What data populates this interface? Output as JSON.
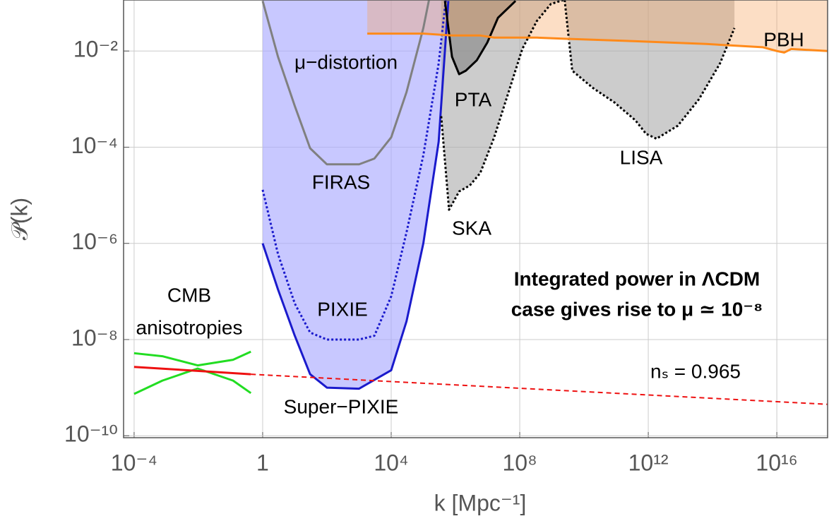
{
  "chart_data": {
    "type": "line",
    "x_label": "k [Mpc⁻¹]",
    "y_label": "𝒫(k)",
    "log_x": true,
    "log_y": true,
    "grid": true,
    "xlim": [
      4.7e-05,
      3.8e+17
    ],
    "ylim": [
      9.1e-11,
      0.115
    ],
    "xticks": [
      {
        "value": 0.0001,
        "label": "10⁻⁴"
      },
      1,
      {
        "value": 10000.0,
        "label": "10⁴"
      },
      {
        "value": 100000000.0,
        "label": "10⁸"
      },
      {
        "value": 1000000000000.0,
        "label": "10¹²"
      },
      {
        "value": 1e+16,
        "label": "10¹⁶"
      }
    ],
    "yticks": [
      {
        "value": 1e-10,
        "label": "10⁻¹⁰"
      },
      {
        "value": 1e-08,
        "label": "10⁻⁸"
      },
      {
        "value": 1e-06,
        "label": "10⁻⁶"
      },
      {
        "value": 0.0001,
        "label": "10⁻⁴"
      },
      {
        "value": 0.01,
        "label": "10⁻²"
      }
    ],
    "series": [
      {
        "color": "#1a1acc",
        "style": "solid",
        "fill": "rgba(170,170,255,0.65)",
        "x": [
          1,
          3,
          10,
          30,
          100,
          1000,
          10000,
          30000,
          100000,
          300000,
          600000
        ],
        "y": [
          1e-06,
          1.1e-07,
          1.2e-08,
          1.9e-09,
          1e-09,
          9.5e-10,
          2.3e-09,
          2.4e-08,
          1e-06,
          0.00013,
          0.11
        ]
      },
      {
        "color": "#1a1acc",
        "style": "dotted",
        "x": [
          1,
          3,
          10,
          30,
          100,
          1000,
          3000,
          10000,
          30000,
          100000,
          300000,
          500000
        ],
        "y": [
          1.3e-05,
          6e-07,
          5.6e-08,
          1.4e-08,
          1e-08,
          1e-08,
          1.2e-08,
          7.9e-08,
          1.7e-06,
          6.8e-05,
          0.0055,
          0.115
        ]
      },
      {
        "color": "#808080",
        "style": "solid",
        "x": [
          1,
          3,
          10,
          30,
          100,
          1000,
          3000,
          10000,
          30000,
          100000,
          150000
        ],
        "y": [
          0.11,
          0.0076,
          0.00072,
          9.5e-05,
          4.4e-05,
          4.4e-05,
          5.8e-05,
          0.00016,
          0.0014,
          0.03,
          0.115
        ]
      },
      {
        "color": "#000000",
        "style": "solid",
        "fill": "rgba(110,110,110,0.75)",
        "x": [
          470000,
          780000,
          1300000,
          2100000,
          4600000,
          9800000,
          21000000,
          74000000
        ],
        "y": [
          0.11,
          0.0076,
          0.0033,
          0.0039,
          0.0064,
          0.015,
          0.049,
          0.11
        ]
      },
      {
        "color": "#000000",
        "style": "dotted",
        "fill": "rgba(170,170,170,0.6)",
        "x": [
          360000,
          630000,
          1300000,
          2800000,
          5900000,
          16000000,
          45000000,
          120000000,
          340000000,
          930000000,
          2300000000
        ],
        "y": [
          0.00044,
          5e-06,
          1.2e-05,
          1.6e-05,
          2.9e-05,
          0.00016,
          0.0014,
          0.011,
          0.042,
          0.095,
          0.115
        ]
      },
      {
        "color": "#000000",
        "style": "dotted",
        "fill": "rgba(170,170,170,0.6)",
        "x": [
          2500000000,
          4300000000,
          19000000000,
          89000000000,
          400000000000,
          850000000000,
          1800000000000,
          8300000000000,
          38000000000000,
          170000000000000,
          480000000000000
        ],
        "y": [
          0.115,
          0.0039,
          0.0017,
          0.00085,
          0.00036,
          0.00019,
          0.00015,
          0.00028,
          0.001,
          0.0055,
          0.03
        ]
      },
      {
        "color": "#ff8a1a",
        "style": "solid",
        "fill": "rgba(245,160,90,0.35)",
        "x": [
          1800,
          100000,
          780000,
          5900000,
          16000000,
          340000000,
          2500000000,
          400000000000,
          63000000000000,
          3600000000000000,
          10000000000000000,
          17000000000000000,
          28000000000000000,
          380000000000000000
        ],
        "y": [
          0.023,
          0.023,
          0.021,
          0.021,
          0.019,
          0.019,
          0.018,
          0.016,
          0.014,
          0.012,
          0.01,
          0.0093,
          0.011,
          0.01
        ]
      },
      {
        "color": "#22dd22",
        "style": "solid",
        "x": [
          0.0001,
          0.00076,
          0.0095,
          0.12,
          0.43
        ],
        "y": [
          5.2e-09,
          4.5e-09,
          2.9e-09,
          3.8e-09,
          5.6e-09
        ]
      },
      {
        "color": "#22dd22",
        "style": "solid",
        "x": [
          0.0001,
          0.00076,
          0.0095,
          0.12,
          0.43
        ],
        "y": [
          7.4e-10,
          1.4e-09,
          2.5e-09,
          1.4e-09,
          7.7e-10
        ]
      },
      {
        "color": "#ee1111",
        "style": "solid",
        "x": [
          0.0001,
          0.43
        ],
        "y": [
          2.7e-09,
          1.9e-09
        ]
      },
      {
        "color": "#ee1111",
        "style": "dashed",
        "x": [
          0.43,
          380000000000000000
        ],
        "y": [
          1.9e-09,
          4.5e-10
        ]
      }
    ],
    "annotations": [
      "μ−distortion",
      "FIRAS",
      "PIXIE",
      "Super−PIXIE",
      "PTA",
      "SKA",
      "LISA",
      "PBH",
      "CMB",
      "anisotropies",
      "Integrated power in ΛCDM",
      "case gives rise to μ ≃ 10⁻⁸",
      "nₛ = 0.965"
    ]
  }
}
